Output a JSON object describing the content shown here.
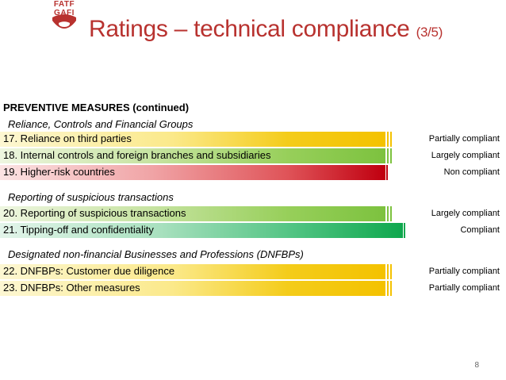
{
  "logo": {
    "line1": "FATF",
    "line2": "GAFI"
  },
  "title": {
    "main": "Ratings – technical compliance",
    "fraction": "(3/5)"
  },
  "section_header": "PREVENTIVE MEASURES (continued)",
  "groups": [
    {
      "label": "Reliance, Controls and Financial Groups"
    },
    {
      "label": "Reporting of suspicious transactions"
    },
    {
      "label": "Designated non-financial Businesses and Professions (DNFBPs)"
    }
  ],
  "rows": [
    {
      "label": "17. Reliance on third parties",
      "rating": "Partially compliant",
      "color": "#f4c200"
    },
    {
      "label": "18. Internal controls and foreign branches and subsidiaries",
      "rating": "Largely compliant",
      "color": "#7dc23f"
    },
    {
      "label": "19. Higher-risk countries",
      "rating": "Non compliant",
      "color": "#c00010"
    },
    {
      "label": "20. Reporting of suspicious transactions",
      "rating": "Largely compliant",
      "color": "#7dc23f"
    },
    {
      "label": "21. Tipping-off and confidentiality",
      "rating": "Compliant",
      "color": "#0fa84e"
    },
    {
      "label": "22. DNFBPs: Customer due diligence",
      "rating": "Partially compliant",
      "color": "#f4c200"
    },
    {
      "label": "23. DNFBPs: Other measures",
      "rating": "Partially compliant",
      "color": "#f4c200"
    }
  ],
  "page_number": "8"
}
